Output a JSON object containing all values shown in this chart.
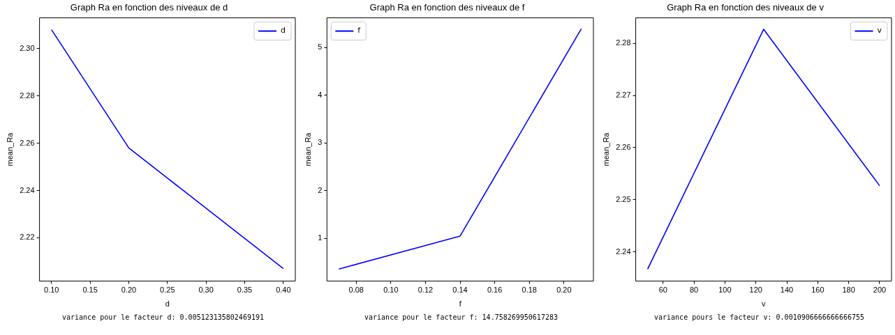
{
  "chart_data": [
    {
      "type": "line",
      "title": "Graph Ra en fonction des niveaux de d",
      "xlabel": "d",
      "ylabel": "mean_Ra",
      "x": [
        0.1,
        0.2,
        0.4
      ],
      "series": [
        {
          "name": "d",
          "color": "#0000ff",
          "values": [
            2.308,
            2.258,
            2.207
          ]
        }
      ],
      "xlim": [
        0.0845,
        0.4155
      ],
      "ylim": [
        2.2017,
        2.313
      ],
      "xticks": [
        {
          "value": 0.1,
          "label": "0.10"
        },
        {
          "value": 0.15,
          "label": "0.15"
        },
        {
          "value": 0.2,
          "label": "0.20"
        },
        {
          "value": 0.25,
          "label": "0.25"
        },
        {
          "value": 0.3,
          "label": "0.30"
        },
        {
          "value": 0.35,
          "label": "0.35"
        },
        {
          "value": 0.4,
          "label": "0.40"
        }
      ],
      "yticks": [
        2.22,
        2.24,
        2.26,
        2.28,
        {
          "value": 2.3,
          "label": "2.30"
        }
      ],
      "legend": "top right",
      "marker": "none",
      "line_style": "solid",
      "annotations": [
        "variance pour le facteur d: 0.005123135802469191"
      ]
    },
    {
      "type": "line",
      "title": "Graph Ra en fonction des niveaux de f",
      "xlabel": "f",
      "ylabel": "mean_Ra",
      "x": [
        0.07,
        0.14,
        0.21
      ],
      "series": [
        {
          "name": "f",
          "color": "#0000ff",
          "values": [
            0.36,
            1.05,
            5.39
          ]
        }
      ],
      "xlim": [
        0.0631,
        0.217
      ],
      "ylim": [
        0.107,
        5.62
      ],
      "xticks": [
        {
          "value": 0.08,
          "label": "0.08"
        },
        {
          "value": 0.1,
          "label": "0.10"
        },
        {
          "value": 0.12,
          "label": "0.12"
        },
        {
          "value": 0.14,
          "label": "0.14"
        },
        {
          "value": 0.16,
          "label": "0.16"
        },
        {
          "value": 0.18,
          "label": "0.18"
        },
        {
          "value": 0.2,
          "label": "0.20"
        }
      ],
      "yticks": [
        1,
        2,
        3,
        4,
        5
      ],
      "legend": "top left",
      "marker": "none",
      "line_style": "solid",
      "annotations": [
        "variance pour le facteur f: 14.758269950617283"
      ]
    },
    {
      "type": "line",
      "title": "Graph Ra en fonction des niveaux de v",
      "xlabel": "v",
      "ylabel": "mean_Ra",
      "x": [
        50,
        125,
        200
      ],
      "series": [
        {
          "name": "v",
          "color": "#0000ff",
          "values": [
            2.2367,
            2.2827,
            2.2527
          ]
        }
      ],
      "xlim": [
        42.3,
        207.7
      ],
      "ylim": [
        2.2344,
        2.2849
      ],
      "xticks": [
        60,
        80,
        100,
        120,
        140,
        160,
        180,
        200
      ],
      "yticks": [
        2.24,
        2.25,
        2.26,
        2.27,
        2.28
      ],
      "legend": "top right",
      "marker": "none",
      "line_style": "solid",
      "annotations": [
        "variance pours le facteur v: 0.0010906666666666755"
      ]
    }
  ]
}
